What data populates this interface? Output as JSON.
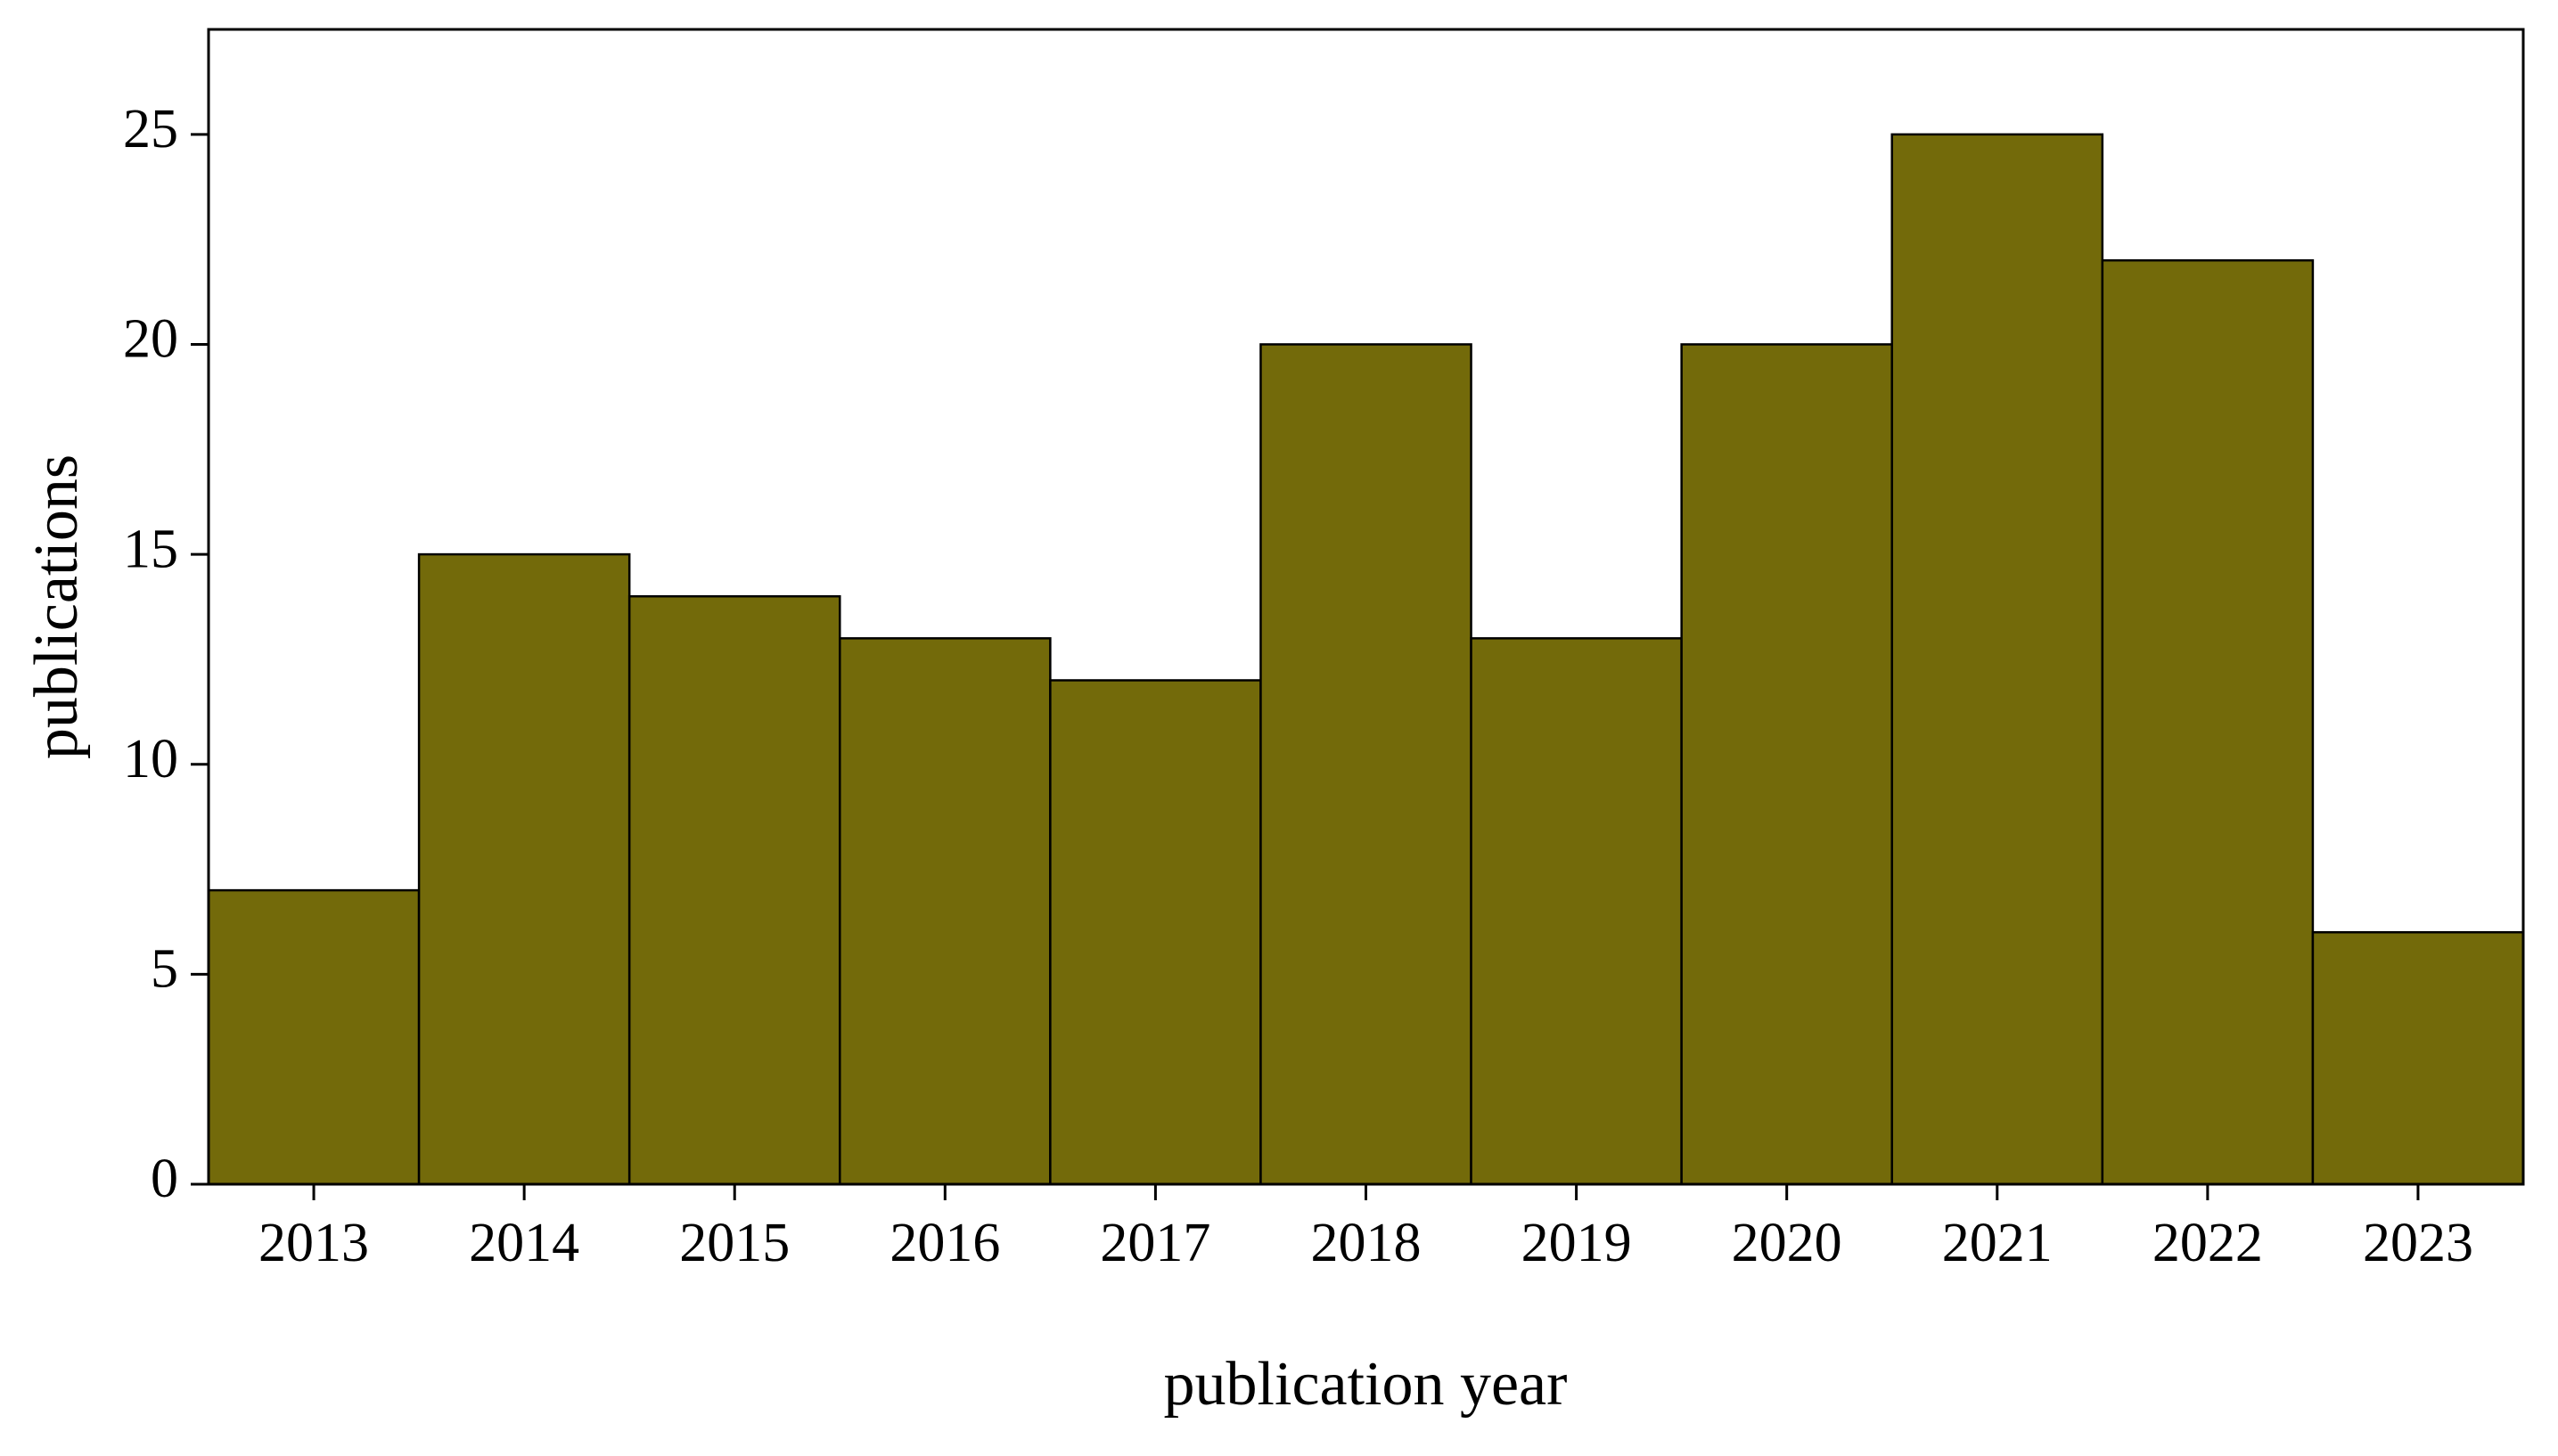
{
  "chart_data": {
    "type": "bar",
    "xlabel": "publication year",
    "ylabel": "publications",
    "categories": [
      "2013",
      "2014",
      "2015",
      "2016",
      "2017",
      "2018",
      "2019",
      "2020",
      "2021",
      "2022",
      "2023"
    ],
    "values": [
      7,
      15,
      14,
      13,
      12,
      20,
      13,
      20,
      25,
      22,
      6
    ],
    "color": "#736a0a",
    "ylim": [
      0,
      27.5
    ],
    "yticks": [
      0,
      5,
      10,
      15,
      20,
      25
    ],
    "grid": false
  }
}
